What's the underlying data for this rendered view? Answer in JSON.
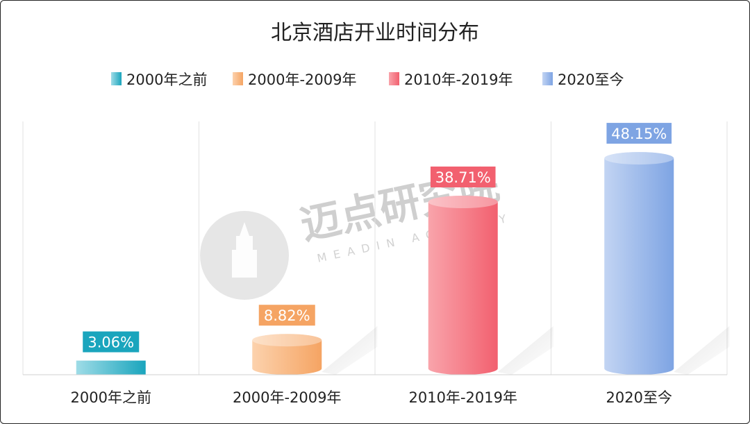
{
  "chart_data": {
    "type": "bar",
    "title": "北京酒店开业时间分布",
    "categories": [
      "2000年之前",
      "2000年-2009年",
      "2010年-2019年",
      "2020至今"
    ],
    "values": [
      3.06,
      8.82,
      38.71,
      48.15
    ],
    "value_labels": [
      "3.06%",
      "8.82%",
      "38.71%",
      "48.15%"
    ],
    "unit": "%",
    "ylim": [
      0,
      55
    ],
    "grid": false,
    "legend": "top-center",
    "bar_style": "cylinder",
    "colors": [
      "#1aa5bd",
      "#f5a463",
      "#f2606f",
      "#7ea4e3"
    ]
  },
  "legend_items": [
    "2000年之前",
    "2000年-2009年",
    "2010年-2019年",
    "2020至今"
  ],
  "watermark": {
    "text": "迈点研究院",
    "subtext": "MEADIN ACADEMY"
  }
}
